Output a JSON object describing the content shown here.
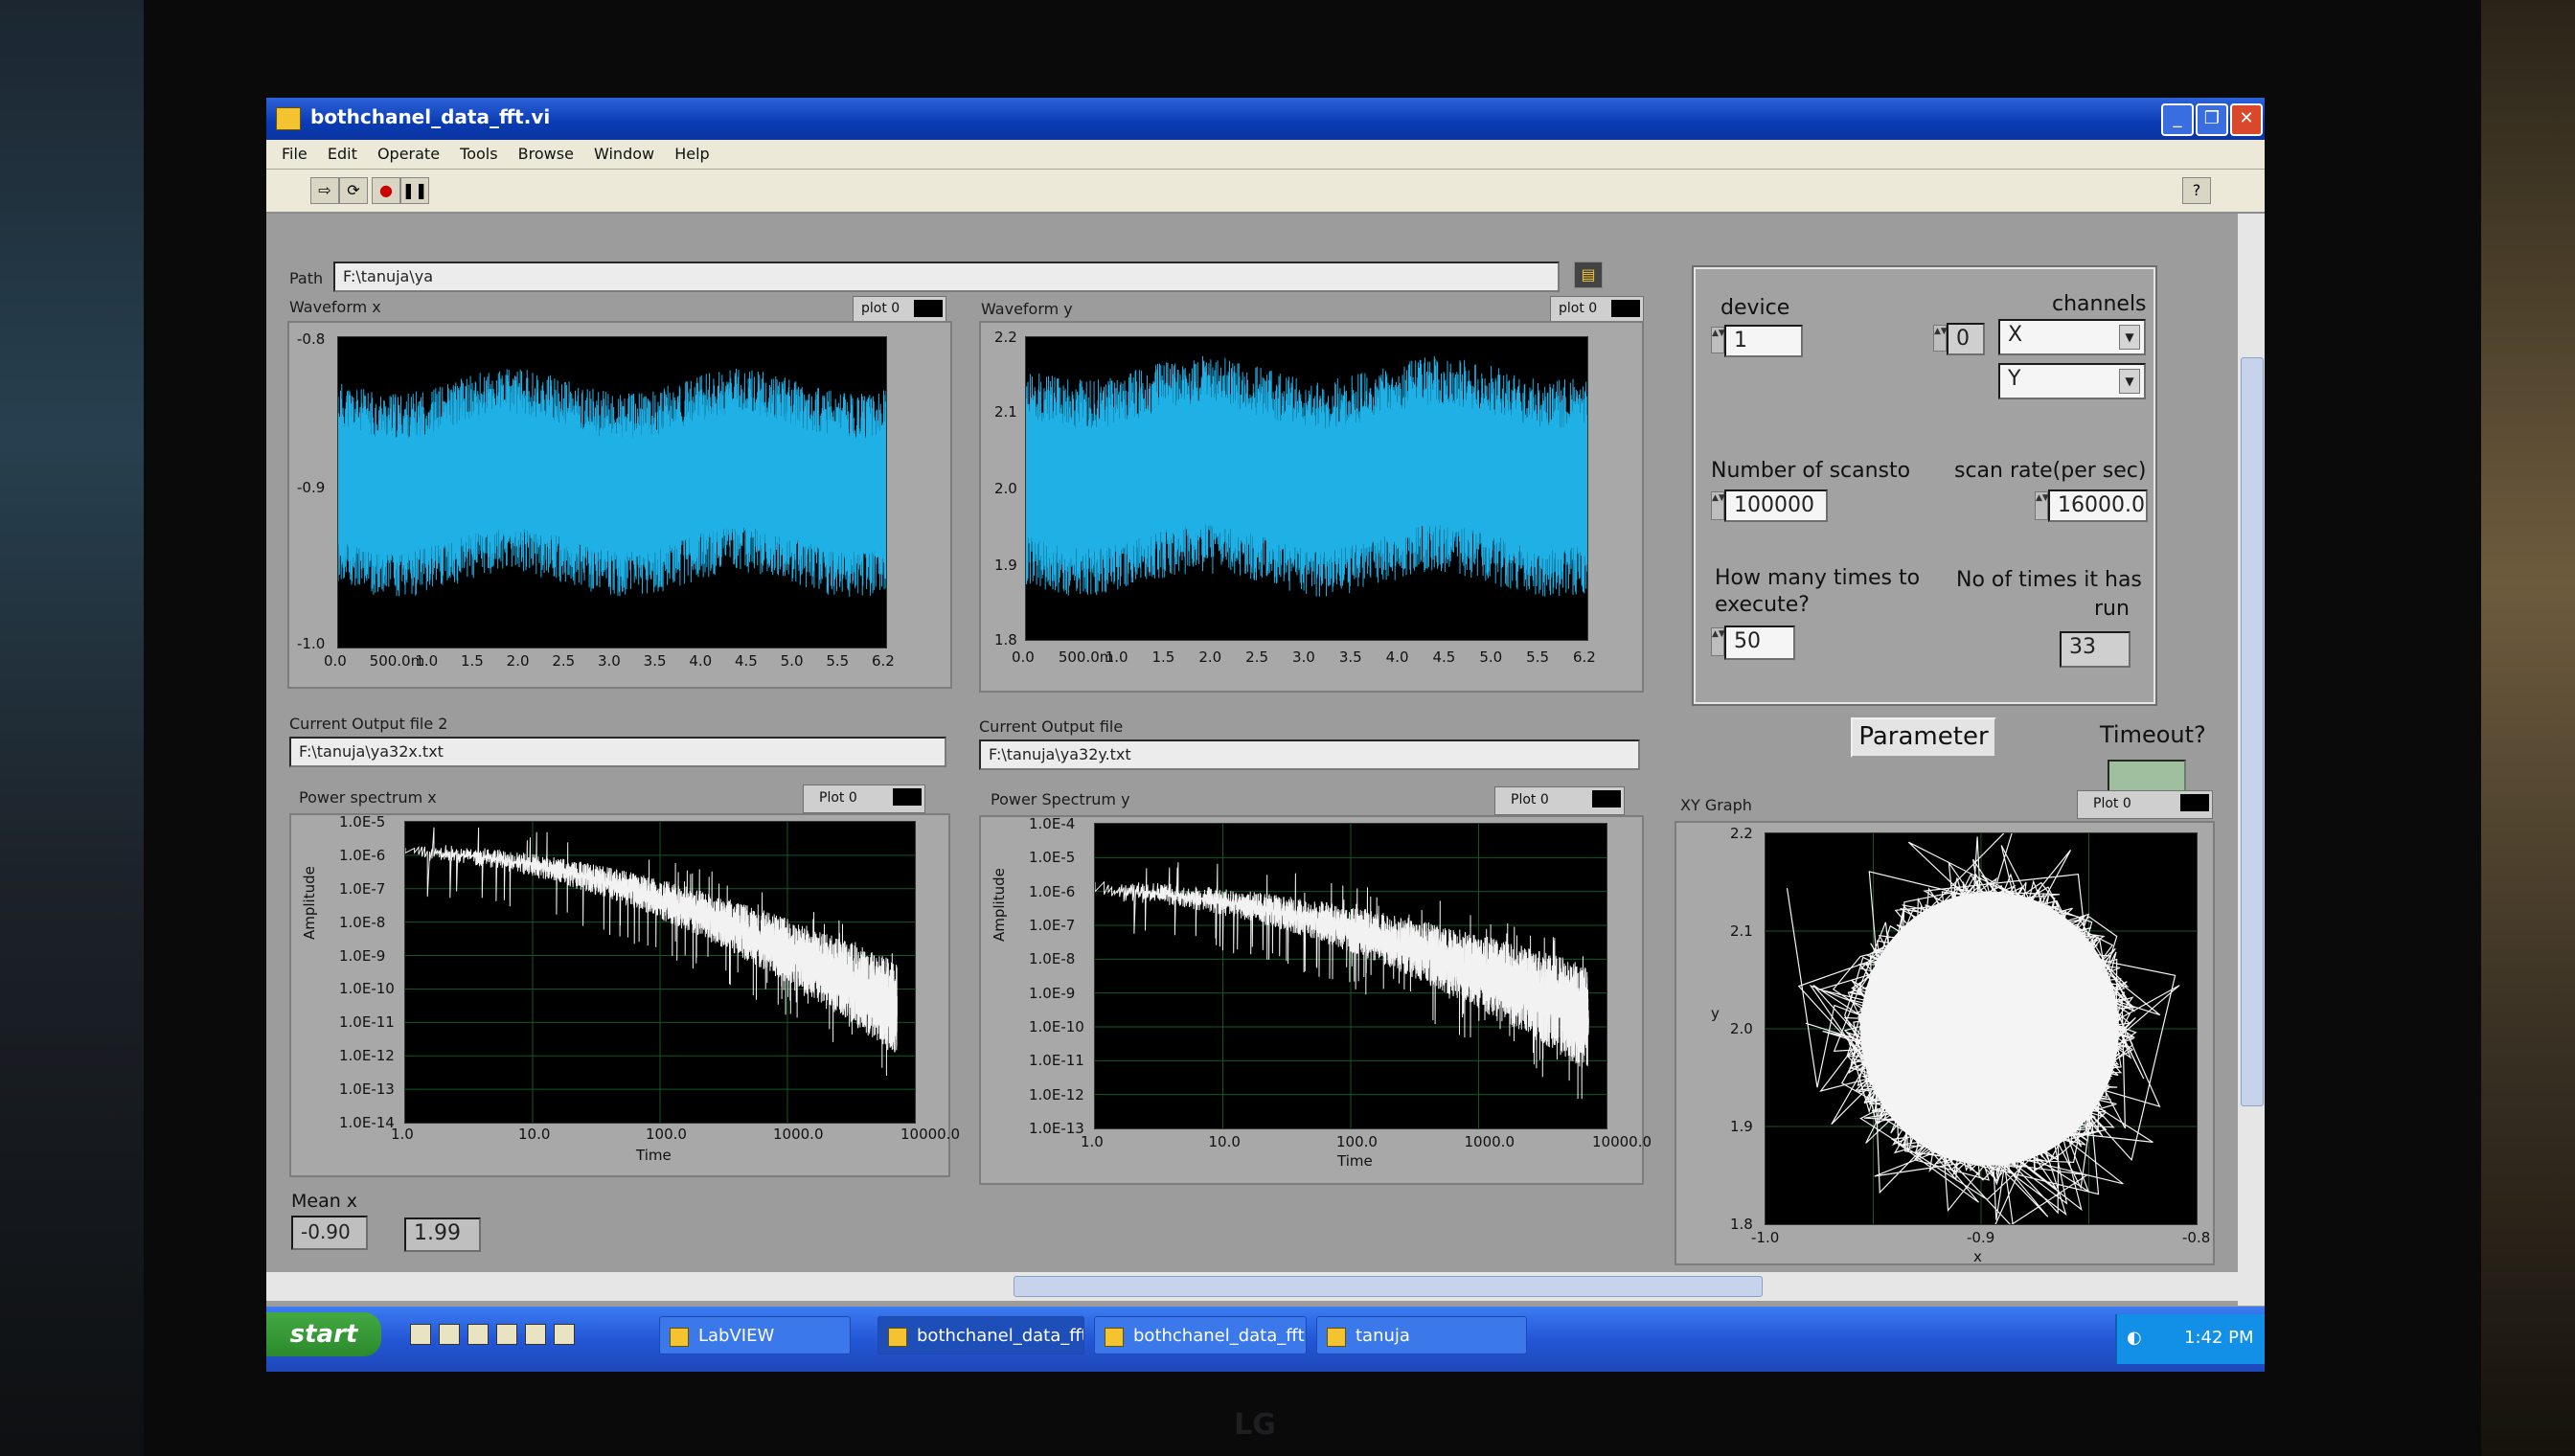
{
  "window": {
    "title": "bothchanel_data_fft.vi",
    "menu": [
      "File",
      "Edit",
      "Operate",
      "Tools",
      "Browse",
      "Window",
      "Help"
    ]
  },
  "path": {
    "label": "Path",
    "value": "F:\\tanuja\\ya"
  },
  "waveform_x": {
    "title": "Waveform x",
    "legend": "plot 0",
    "y_ticks": [
      "-0.8",
      "-0.9",
      "-1.0"
    ],
    "x_ticks": [
      "0.0",
      "500.0m",
      "1.0",
      "1.5",
      "2.0",
      "2.5",
      "3.0",
      "3.5",
      "4.0",
      "4.5",
      "5.0",
      "5.5",
      "6.2"
    ],
    "color": "#1fb0e6"
  },
  "waveform_y": {
    "title": "Waveform y",
    "legend": "plot 0",
    "y_ticks": [
      "2.2",
      "2.1",
      "2.0",
      "1.9",
      "1.8"
    ],
    "x_ticks": [
      "0.0",
      "500.0m",
      "1.0",
      "1.5",
      "2.0",
      "2.5",
      "3.0",
      "3.5",
      "4.0",
      "4.5",
      "5.0",
      "5.5",
      "6.2"
    ],
    "color": "#1fb0e6"
  },
  "output_file_2": {
    "label": "Current Output file 2",
    "value": "F:\\tanuja\\ya32x.txt"
  },
  "output_file": {
    "label": "Current Output file",
    "value": "F:\\tanuja\\ya32y.txt"
  },
  "power_x": {
    "title": "Power spectrum x",
    "legend": "Plot 0",
    "ylabel": "Amplitude",
    "xlabel": "Time",
    "y_ticks": [
      "1.0E-5",
      "1.0E-6",
      "1.0E-7",
      "1.0E-8",
      "1.0E-9",
      "1.0E-10",
      "1.0E-11",
      "1.0E-12",
      "1.0E-13",
      "1.0E-14"
    ],
    "x_ticks": [
      "1.0",
      "10.0",
      "100.0",
      "1000.0",
      "10000.0"
    ]
  },
  "power_y": {
    "title": "Power Spectrum y",
    "legend": "Plot 0",
    "ylabel": "Amplitude",
    "xlabel": "Time",
    "y_ticks": [
      "1.0E-4",
      "1.0E-5",
      "1.0E-6",
      "1.0E-7",
      "1.0E-8",
      "1.0E-9",
      "1.0E-10",
      "1.0E-11",
      "1.0E-12",
      "1.0E-13"
    ],
    "x_ticks": [
      "1.0",
      "10.0",
      "100.0",
      "1000.0",
      "10000.0"
    ]
  },
  "xy_graph": {
    "title": "XY Graph",
    "legend": "Plot 0",
    "xlabel": "x",
    "ylabel": "y",
    "y_ticks": [
      "2.2",
      "2.1",
      "2.0",
      "1.9",
      "1.8"
    ],
    "x_ticks": [
      "-1.0",
      "-0.9",
      "-0.8"
    ]
  },
  "settings": {
    "device_label": "device",
    "device_value": "1",
    "channels_label": "channels",
    "channel_index": "0",
    "channel_1": "X",
    "channel_2": "Y",
    "scans_label": "Number of scansto",
    "scans_value": "100000",
    "rate_label": "scan rate(per sec)",
    "rate_value": "16000.0",
    "times_label_1": "How many times to",
    "times_label_2": "execute?",
    "times_value": "50",
    "run_label_1": "No of times it has",
    "run_label_2": "run",
    "run_value": "33"
  },
  "parameter_button": "Parameter",
  "timeout_label": "Timeout?",
  "mean": {
    "label": "Mean x",
    "x_value": "-0.90",
    "y_value": "1.99"
  },
  "taskbar": {
    "start": "start",
    "tasks": [
      "LabVIEW",
      "bothchanel_data_fft.vi",
      "bothchanel_data_fft....",
      "tanuja"
    ],
    "clock": "1:42 PM"
  },
  "monitor_brand": "LG"
}
